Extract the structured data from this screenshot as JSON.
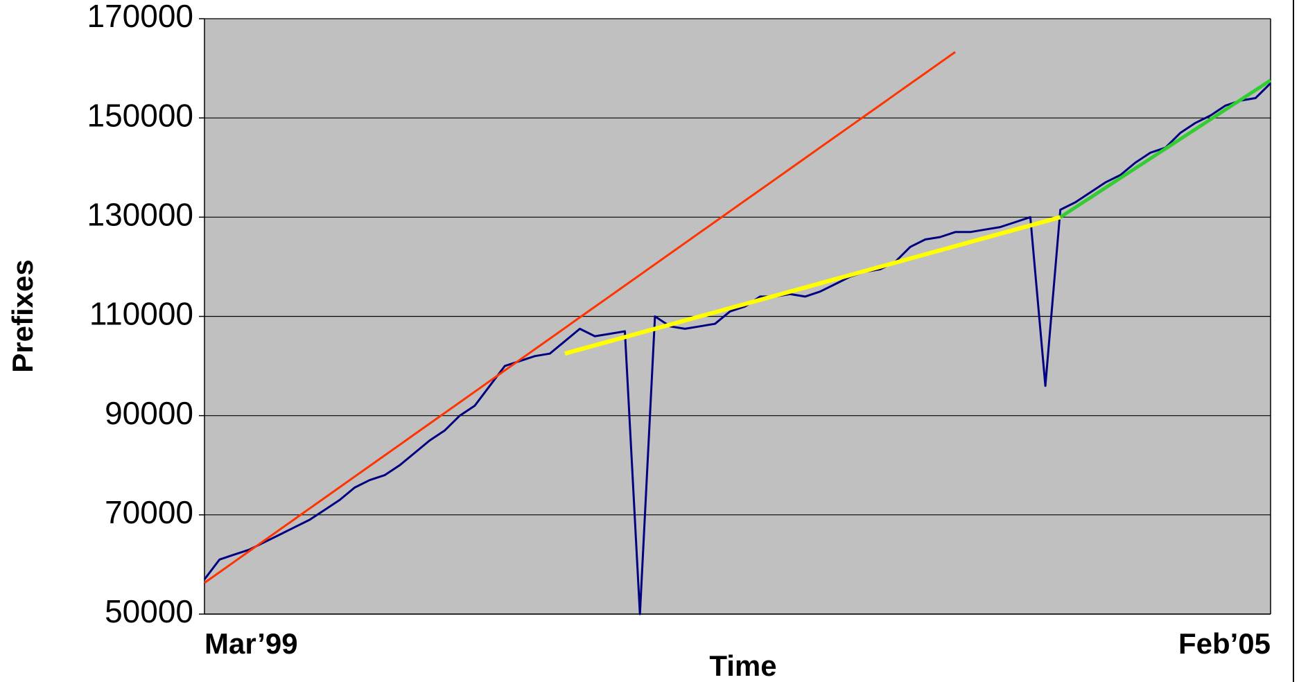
{
  "chart_data": {
    "type": "line",
    "y_label": "Prefixes",
    "x_label": "Time",
    "categories": [
      "Mar’99",
      null,
      null,
      null,
      null,
      null,
      null,
      null,
      null,
      null,
      null,
      null,
      null,
      null,
      null,
      null,
      null,
      null,
      null,
      null,
      null,
      null,
      null,
      null,
      null,
      null,
      null,
      null,
      null,
      null,
      null,
      null,
      null,
      null,
      null,
      null,
      null,
      null,
      null,
      null,
      null,
      null,
      null,
      null,
      null,
      null,
      null,
      null,
      null,
      null,
      null,
      null,
      null,
      null,
      null,
      null,
      null,
      null,
      null,
      null,
      null,
      null,
      null,
      null,
      null,
      null,
      null,
      null,
      null,
      null,
      null,
      "Feb’05"
    ],
    "series": [
      {
        "color": "#000080",
        "width": 3,
        "values": [
          57000,
          61000,
          62000,
          63000,
          64500,
          66000,
          67500,
          69000,
          71000,
          73000,
          75500,
          77000,
          78000,
          80000,
          82500,
          85000,
          87000,
          90000,
          92000,
          96000,
          100000,
          101000,
          102000,
          102500,
          105000,
          107500,
          106000,
          106500,
          107000,
          50000,
          110000,
          108000,
          107500,
          108000,
          108500,
          111000,
          112000,
          114000,
          114000,
          114500,
          114000,
          115000,
          116500,
          118000,
          119000,
          119500,
          121000,
          124000,
          125500,
          126000,
          127000,
          127000,
          127500,
          128000,
          129000,
          130000,
          96000,
          131500,
          133000,
          135000,
          137000,
          138500,
          141000,
          143000,
          144000,
          147000,
          149000,
          150500,
          152500,
          153500,
          154000,
          157000
        ]
      },
      {
        "color": "#ff3300",
        "width": 3,
        "values": [
          56300,
          58440,
          60580,
          62720,
          64860,
          67000,
          69140,
          71280,
          73420,
          75560,
          77700,
          79840,
          81980,
          84120,
          86260,
          88400,
          90540,
          92680,
          94820,
          96960,
          99100,
          101240,
          103380,
          105520,
          107660,
          109800,
          111940,
          114080,
          116220,
          118360,
          120500,
          122640,
          124780,
          126920,
          129060,
          131200,
          133340,
          135480,
          137620,
          139760,
          141900,
          144040,
          146180,
          148320,
          150460,
          152600,
          154740,
          156880,
          159020,
          161160,
          163300,
          null,
          null,
          null,
          null,
          null,
          null,
          null,
          null,
          null,
          null,
          null,
          null,
          null,
          null,
          null,
          null,
          null,
          null,
          null,
          null,
          null
        ]
      },
      {
        "color": "#ffff00",
        "width": 6,
        "values": [
          null,
          null,
          null,
          null,
          null,
          null,
          null,
          null,
          null,
          null,
          null,
          null,
          null,
          null,
          null,
          null,
          null,
          null,
          null,
          null,
          null,
          null,
          null,
          null,
          102500,
          103330,
          104170,
          105000,
          105830,
          106670,
          107500,
          108330,
          109170,
          110000,
          110830,
          111670,
          112500,
          113330,
          114170,
          115000,
          115830,
          116670,
          117500,
          118330,
          119170,
          120000,
          120830,
          121670,
          122500,
          123330,
          124170,
          125000,
          125830,
          126670,
          127500,
          128330,
          129170,
          130000,
          null,
          null,
          null,
          null,
          null,
          null,
          null,
          null,
          null,
          null,
          null,
          null,
          null,
          null
        ]
      },
      {
        "color": "#33cc33",
        "width": 5,
        "values": [
          null,
          null,
          null,
          null,
          null,
          null,
          null,
          null,
          null,
          null,
          null,
          null,
          null,
          null,
          null,
          null,
          null,
          null,
          null,
          null,
          null,
          null,
          null,
          null,
          null,
          null,
          null,
          null,
          null,
          null,
          null,
          null,
          null,
          null,
          null,
          null,
          null,
          null,
          null,
          null,
          null,
          null,
          null,
          null,
          null,
          null,
          null,
          null,
          null,
          null,
          null,
          null,
          null,
          null,
          null,
          null,
          null,
          130000,
          131970,
          133940,
          135910,
          137880,
          139850,
          141820,
          143790,
          145760,
          147730,
          149700,
          151670,
          153640,
          155610,
          157580
        ]
      }
    ],
    "ylim": [
      50000,
      170000
    ],
    "yticks": [
      50000,
      70000,
      90000,
      110000,
      130000,
      150000,
      170000
    ],
    "grid": true,
    "plot_background": "#c0c0c0"
  }
}
